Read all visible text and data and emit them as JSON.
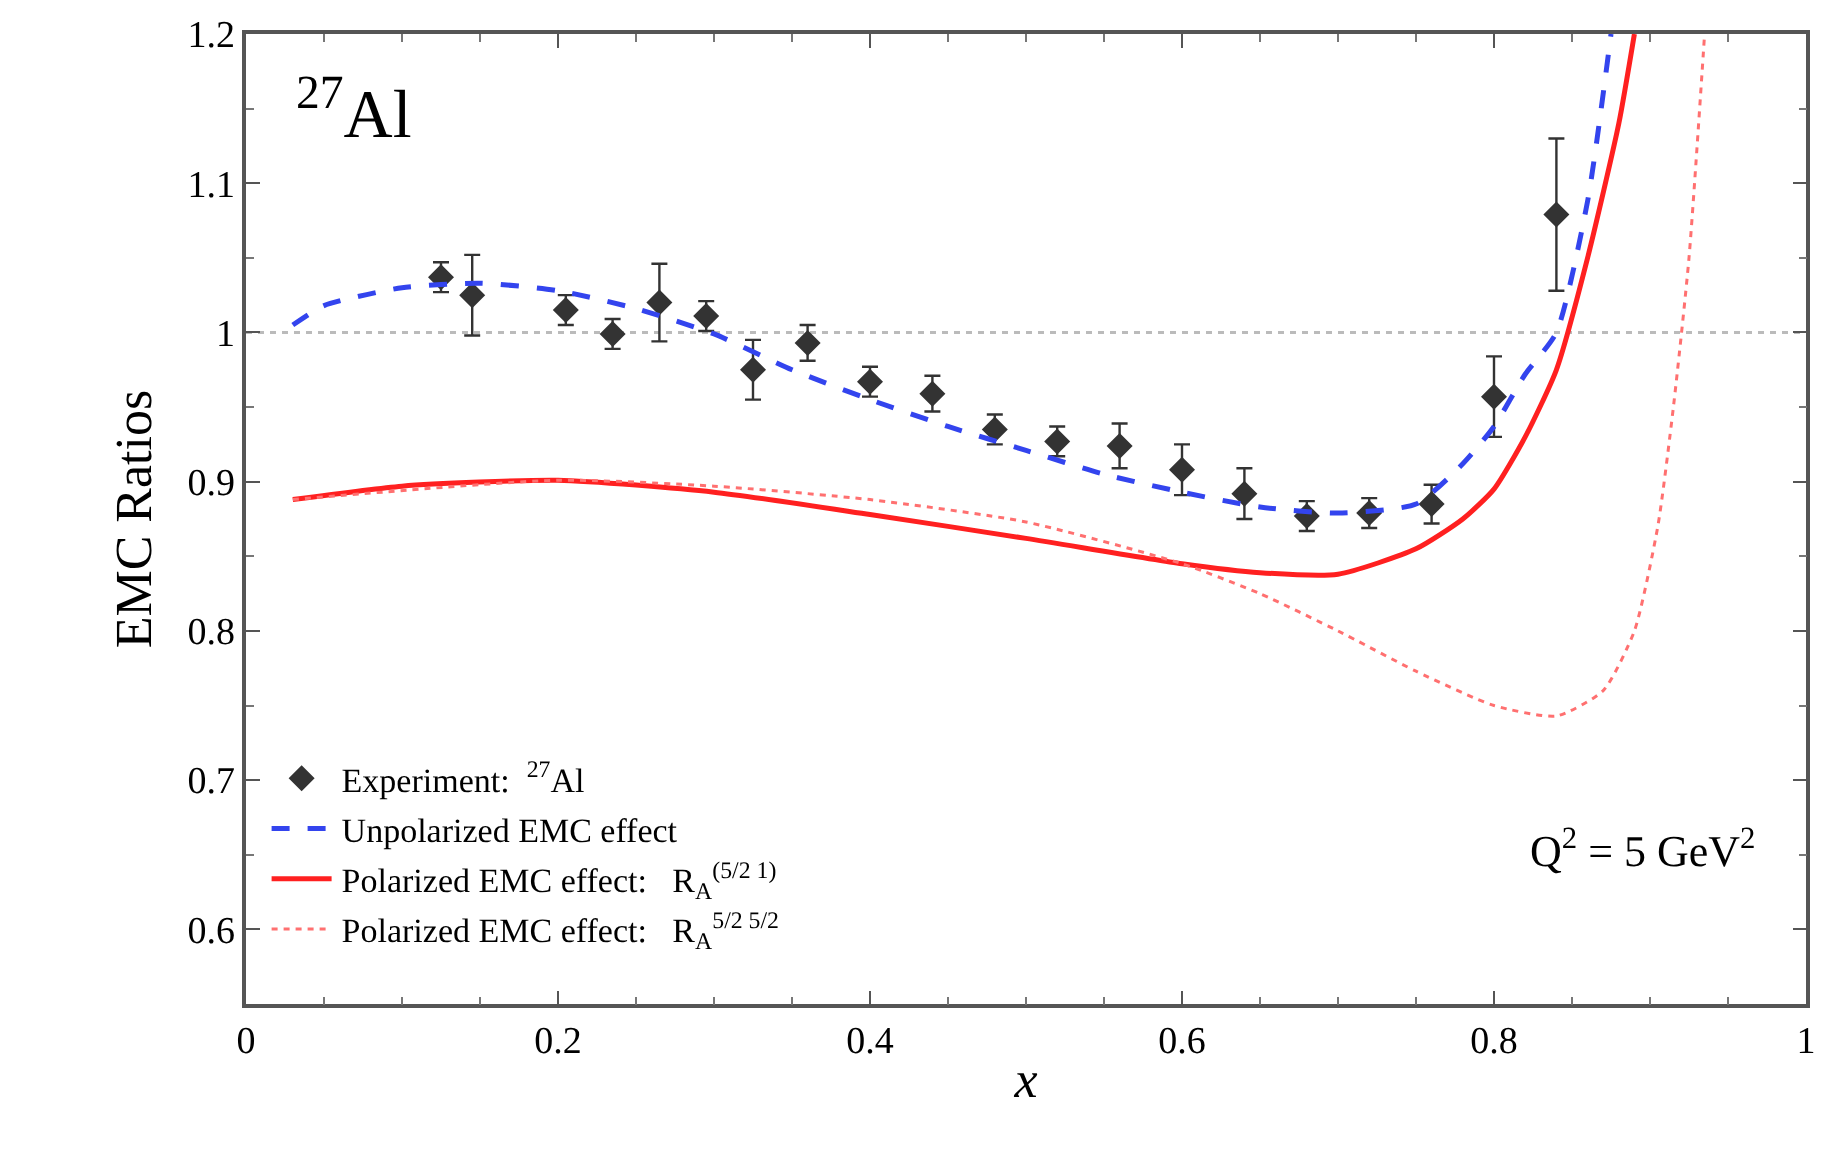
{
  "chart_data": {
    "type": "line",
    "xlabel": "x",
    "ylabel": "EMC Ratios",
    "xlim": [
      0,
      1
    ],
    "ylim": [
      0.55,
      1.2
    ],
    "xticks": [
      0,
      0.2,
      0.4,
      0.6,
      0.8,
      1
    ],
    "yticks": [
      0.6,
      0.7,
      0.8,
      0.9,
      1,
      1.1,
      1.2
    ],
    "grid": false,
    "legend": "bottom left",
    "ref_lines": [
      {
        "axis": "y",
        "value": 1,
        "color": "#bbbbbb",
        "line_style": "dotted"
      }
    ],
    "annotations": [
      "$^{27}$Al",
      "Q$^{2}$ = 5 GeV$^{2}$"
    ],
    "series": [
      {
        "name": "Experiment:  $^{27}$Al",
        "type": "scatter",
        "marker": "diamond",
        "color": "#333333",
        "x": [
          0.125,
          0.145,
          0.205,
          0.235,
          0.265,
          0.295,
          0.325,
          0.36,
          0.4,
          0.44,
          0.48,
          0.52,
          0.56,
          0.6,
          0.64,
          0.68,
          0.72,
          0.76,
          0.8,
          0.84
        ],
        "values": [
          1.037,
          1.025,
          1.015,
          0.999,
          1.02,
          1.011,
          0.975,
          0.993,
          0.967,
          0.959,
          0.935,
          0.927,
          0.924,
          0.908,
          0.892,
          0.877,
          0.879,
          0.885,
          0.957,
          1.079
        ],
        "errors": [
          0.01,
          0.027,
          0.01,
          0.01,
          0.026,
          0.01,
          0.02,
          0.012,
          0.01,
          0.012,
          0.01,
          0.01,
          0.015,
          0.017,
          0.017,
          0.01,
          0.01,
          0.013,
          0.027,
          0.051
        ]
      },
      {
        "name": "Unpolarized EMC effect",
        "line_style": "dashed",
        "color": "#3344ee",
        "x": [
          0.03,
          0.05,
          0.1,
          0.15,
          0.2,
          0.25,
          0.3,
          0.35,
          0.4,
          0.45,
          0.5,
          0.55,
          0.6,
          0.65,
          0.7,
          0.75,
          0.78,
          0.8,
          0.82,
          0.84,
          0.86,
          0.875
        ],
        "values": [
          1.005,
          1.018,
          1.03,
          1.033,
          1.028,
          1.016,
          0.999,
          0.975,
          0.955,
          0.937,
          0.921,
          0.905,
          0.893,
          0.883,
          0.879,
          0.885,
          0.912,
          0.937,
          0.972,
          1.0,
          1.088,
          1.2
        ]
      },
      {
        "name": "Polarized EMC effect:   R$_{A}$$^{(5/2 1)}$",
        "line_style": "solid",
        "color": "#ff2020",
        "x": [
          0.03,
          0.1,
          0.2,
          0.3,
          0.4,
          0.5,
          0.6,
          0.65,
          0.7,
          0.75,
          0.78,
          0.8,
          0.82,
          0.84,
          0.86,
          0.88,
          0.89
        ],
        "values": [
          0.888,
          0.897,
          0.901,
          0.893,
          0.878,
          0.862,
          0.845,
          0.839,
          0.838,
          0.855,
          0.875,
          0.895,
          0.93,
          0.975,
          1.05,
          1.14,
          1.2
        ]
      },
      {
        "name": "Polarized EMC effect:   R$_{A}$$^{5/2 5/2}$",
        "line_style": "dotted",
        "color": "#ff7070",
        "x": [
          0.03,
          0.2,
          0.3,
          0.4,
          0.5,
          0.6,
          0.65,
          0.7,
          0.75,
          0.8,
          0.84,
          0.87,
          0.89,
          0.905,
          0.915,
          0.925,
          0.935
        ],
        "values": [
          0.888,
          0.901,
          0.897,
          0.888,
          0.873,
          0.845,
          0.825,
          0.8,
          0.773,
          0.75,
          0.743,
          0.76,
          0.8,
          0.87,
          0.95,
          1.05,
          1.2
        ]
      }
    ]
  }
}
